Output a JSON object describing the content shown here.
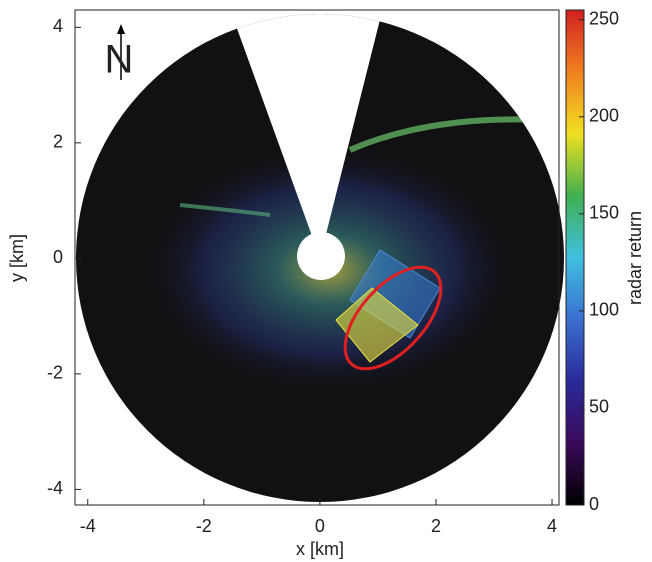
{
  "chart_data": {
    "type": "image",
    "xlabel": "x [km]",
    "ylabel": "y [km]",
    "xlim": [
      -4.22,
      4.12
    ],
    "ylim": [
      -4.27,
      4.3
    ],
    "xticks": [
      -4,
      -2,
      0,
      2,
      4
    ],
    "yticks": [
      -4,
      -2,
      0,
      2,
      4
    ],
    "annotation": "N",
    "colorbar": {
      "label": "radar return",
      "lim": [
        0,
        255
      ],
      "ticks": [
        0,
        50,
        100,
        150,
        200,
        250
      ],
      "colormap": [
        "#000000",
        "#3a0a5a",
        "#2a2a9a",
        "#3a6fd0",
        "#40c0e0",
        "#40b050",
        "#f0e020",
        "#f08020",
        "#d02020"
      ]
    }
  }
}
